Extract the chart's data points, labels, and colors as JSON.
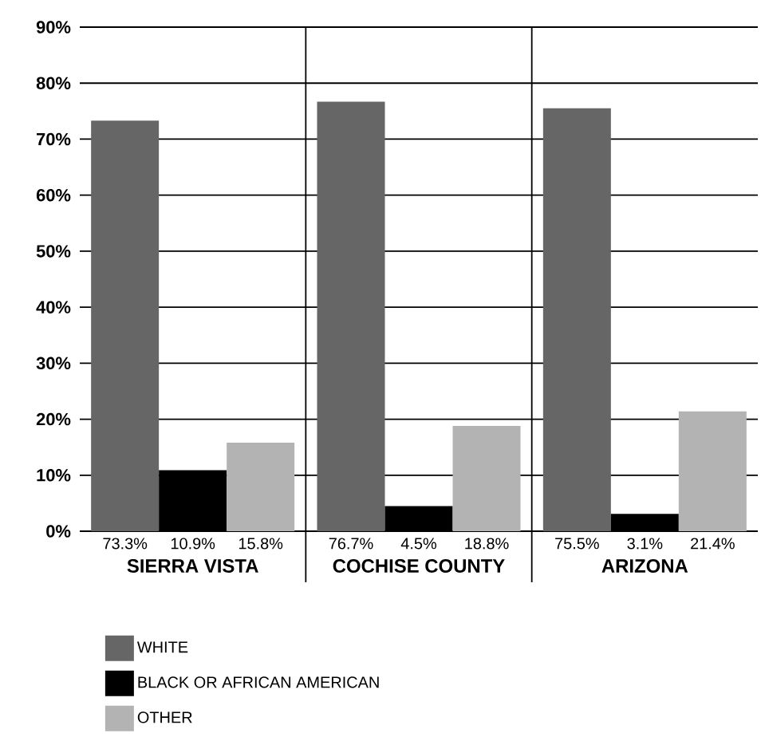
{
  "chart_data": {
    "type": "bar",
    "categories": [
      "SIERRA VISTA",
      "COCHISE COUNTY",
      "ARIZONA"
    ],
    "series": [
      {
        "name": "WHITE",
        "color": "#666666",
        "values": [
          73.3,
          76.7,
          75.5
        ],
        "value_labels": [
          "73.3%",
          "76.7%",
          "75.5%"
        ]
      },
      {
        "name": "BLACK OR AFRICAN AMERICAN",
        "color": "#000000",
        "values": [
          10.9,
          4.5,
          3.1
        ],
        "value_labels": [
          "10.9%",
          "4.5%",
          "3.1%"
        ]
      },
      {
        "name": "OTHER",
        "color": "#b3b3b3",
        "values": [
          15.8,
          18.8,
          21.4
        ],
        "value_labels": [
          "15.8%",
          "18.8%",
          "21.4%"
        ]
      }
    ],
    "ylim": [
      0,
      90
    ],
    "yticks": [
      {
        "value": 0,
        "label": "0%"
      },
      {
        "value": 10,
        "label": "10%"
      },
      {
        "value": 20,
        "label": "20%"
      },
      {
        "value": 30,
        "label": "30%"
      },
      {
        "value": 40,
        "label": "40%"
      },
      {
        "value": 50,
        "label": "50%"
      },
      {
        "value": 60,
        "label": "60%"
      },
      {
        "value": 70,
        "label": "70%"
      },
      {
        "value": 80,
        "label": "80%"
      },
      {
        "value": 90,
        "label": "90%"
      }
    ],
    "grid": "y",
    "legend": "bottom left"
  }
}
